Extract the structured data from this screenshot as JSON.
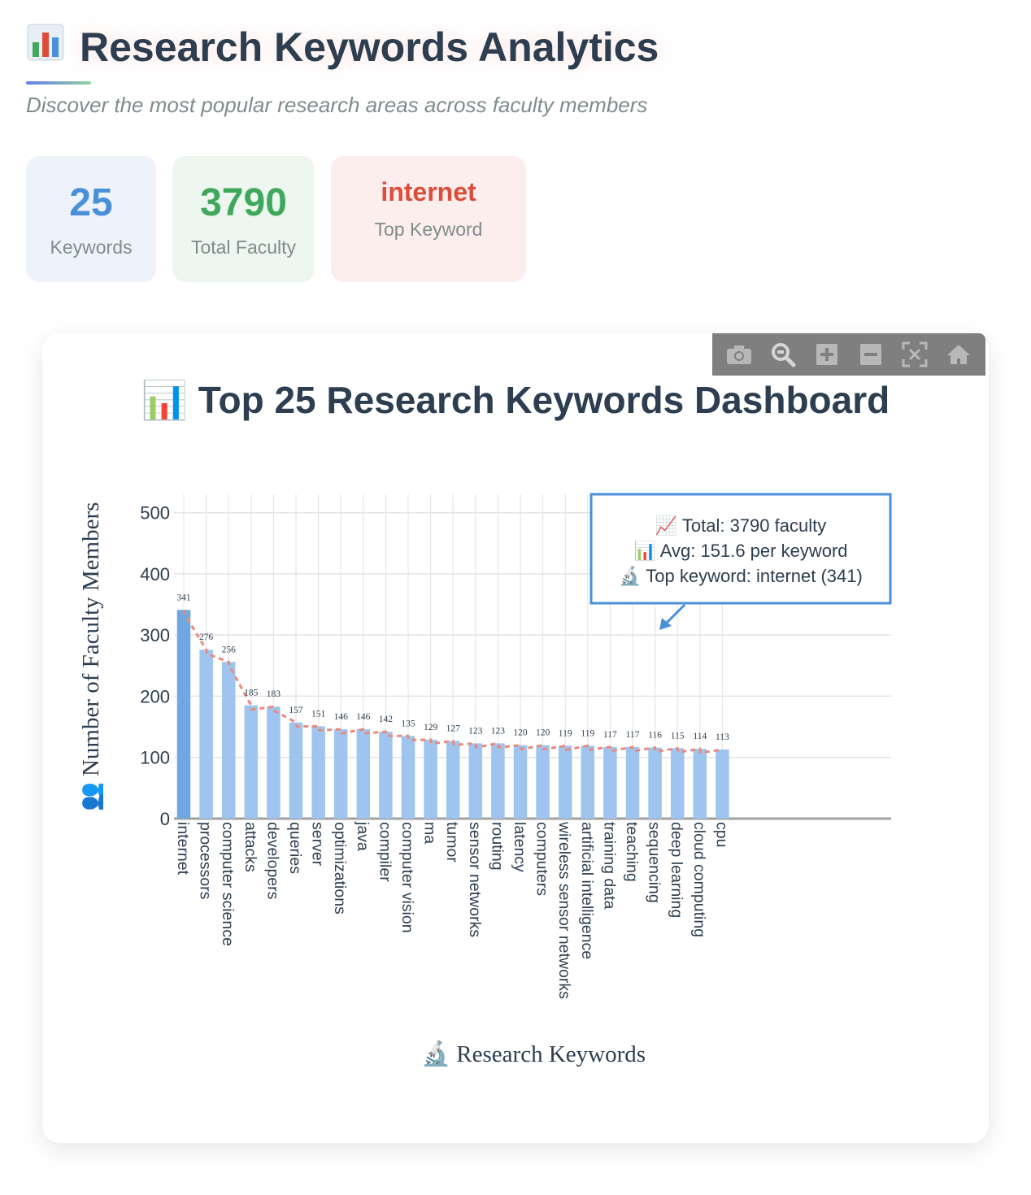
{
  "header": {
    "title_icon": "bar-chart-emoji-icon",
    "title": "Research Keywords Analytics",
    "subtitle": "Discover the most popular research areas across faculty members"
  },
  "stats": [
    {
      "value": "25",
      "label": "Keywords",
      "color": "#4a90d9"
    },
    {
      "value": "3790",
      "label": "Total Faculty",
      "color": "#3fa85c"
    },
    {
      "value": "internet",
      "label": "Top Keyword",
      "color": "#dd4b39"
    }
  ],
  "modebar": {
    "icons": [
      "camera-icon",
      "zoom-icon",
      "zoom-in-icon",
      "zoom-out-icon",
      "autoscale-icon",
      "home-icon"
    ]
  },
  "colors": {
    "bar_first": "#6fa8e0",
    "bar": "#9fc4f0",
    "trend": "#e88a7c",
    "annotation_border": "#4a90d9",
    "title": "#2c3e50"
  },
  "chart_data": {
    "type": "bar",
    "title": "📊 Top 25 Research Keywords Dashboard",
    "xlabel": "🔬 Research Keywords",
    "ylabel": "👥 Number of Faculty Members",
    "ylim": [
      0,
      530
    ],
    "yticks": [
      0,
      100,
      200,
      300,
      400,
      500
    ],
    "grid": true,
    "categories": [
      "internet",
      "processors",
      "computer science",
      "attacks",
      "developers",
      "queries",
      "server",
      "optimizations",
      "java",
      "compiler",
      "computer vision",
      "ma",
      "tumor",
      "sensor networks",
      "routing",
      "latency",
      "computers",
      "wireless sensor networks",
      "artificial intelligence",
      "training data",
      "teaching",
      "sequencing",
      "deep learning",
      "cloud computing",
      "cpu"
    ],
    "values": [
      341,
      276,
      256,
      185,
      183,
      157,
      151,
      146,
      146,
      142,
      135,
      129,
      127,
      123,
      123,
      120,
      120,
      119,
      119,
      117,
      117,
      116,
      115,
      114,
      113
    ],
    "trend_line": true,
    "annotation": {
      "lines": [
        "📈 Total: 3790 faculty",
        "📊 Avg: 151.6 per keyword",
        "🔬 Top keyword: internet (341)"
      ]
    }
  }
}
